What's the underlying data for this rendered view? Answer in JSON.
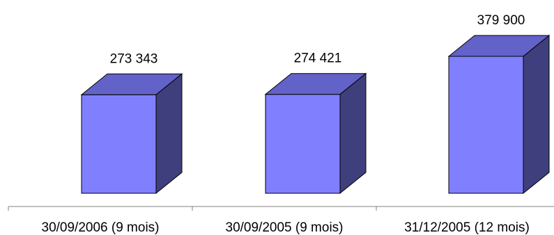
{
  "chart_data": {
    "type": "bar",
    "style": "3d",
    "categories": [
      "30/09/2006 (9 mois)",
      "30/09/2005 (9 mois)",
      "31/12/2005 (12 mois)"
    ],
    "values": [
      273343,
      274421,
      379900
    ],
    "data_labels": [
      "273 343",
      "274 421",
      "379 900"
    ],
    "title": "",
    "xlabel": "",
    "ylabel": "",
    "grid": false,
    "legend": "none",
    "colors": {
      "front": "#8080ff",
      "top": "#6262c8",
      "side": "#3f3f7e",
      "edge": "#000000"
    }
  }
}
